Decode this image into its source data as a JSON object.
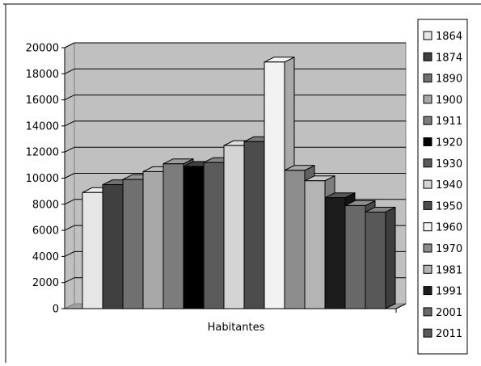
{
  "chart_data": {
    "type": "bar",
    "style": "3d-clustered-column",
    "title": "",
    "xlabel": "",
    "ylabel": "",
    "categories": [
      "Habitantes"
    ],
    "ylim": [
      0,
      20000
    ],
    "yticks": [
      0,
      2000,
      4000,
      6000,
      8000,
      10000,
      12000,
      14000,
      16000,
      18000,
      20000
    ],
    "grid": true,
    "legend_position": "right",
    "plot_background": "#c0c0c0",
    "series": [
      {
        "name": "1864",
        "values": [
          8900
        ],
        "color": "#e6e6e6"
      },
      {
        "name": "1874",
        "values": [
          9500
        ],
        "color": "#404040"
      },
      {
        "name": "1890",
        "values": [
          9900
        ],
        "color": "#707070"
      },
      {
        "name": "1900",
        "values": [
          10500
        ],
        "color": "#a8a8a8"
      },
      {
        "name": "1911",
        "values": [
          11100
        ],
        "color": "#7c7c7c"
      },
      {
        "name": "1920",
        "values": [
          10900
        ],
        "color": "#000000"
      },
      {
        "name": "1930",
        "values": [
          11200
        ],
        "color": "#5a5a5a"
      },
      {
        "name": "1940",
        "values": [
          12500
        ],
        "color": "#d4d4d4"
      },
      {
        "name": "1950",
        "values": [
          12800
        ],
        "color": "#4c4c4c"
      },
      {
        "name": "1960",
        "values": [
          18900
        ],
        "color": "#f2f2f2"
      },
      {
        "name": "1970",
        "values": [
          10600
        ],
        "color": "#8c8c8c"
      },
      {
        "name": "1981",
        "values": [
          9800
        ],
        "color": "#b4b4b4"
      },
      {
        "name": "1991",
        "values": [
          8500
        ],
        "color": "#1c1c1c"
      },
      {
        "name": "2001",
        "values": [
          7900
        ],
        "color": "#686868"
      },
      {
        "name": "2011",
        "values": [
          7400
        ],
        "color": "#585858"
      }
    ]
  }
}
